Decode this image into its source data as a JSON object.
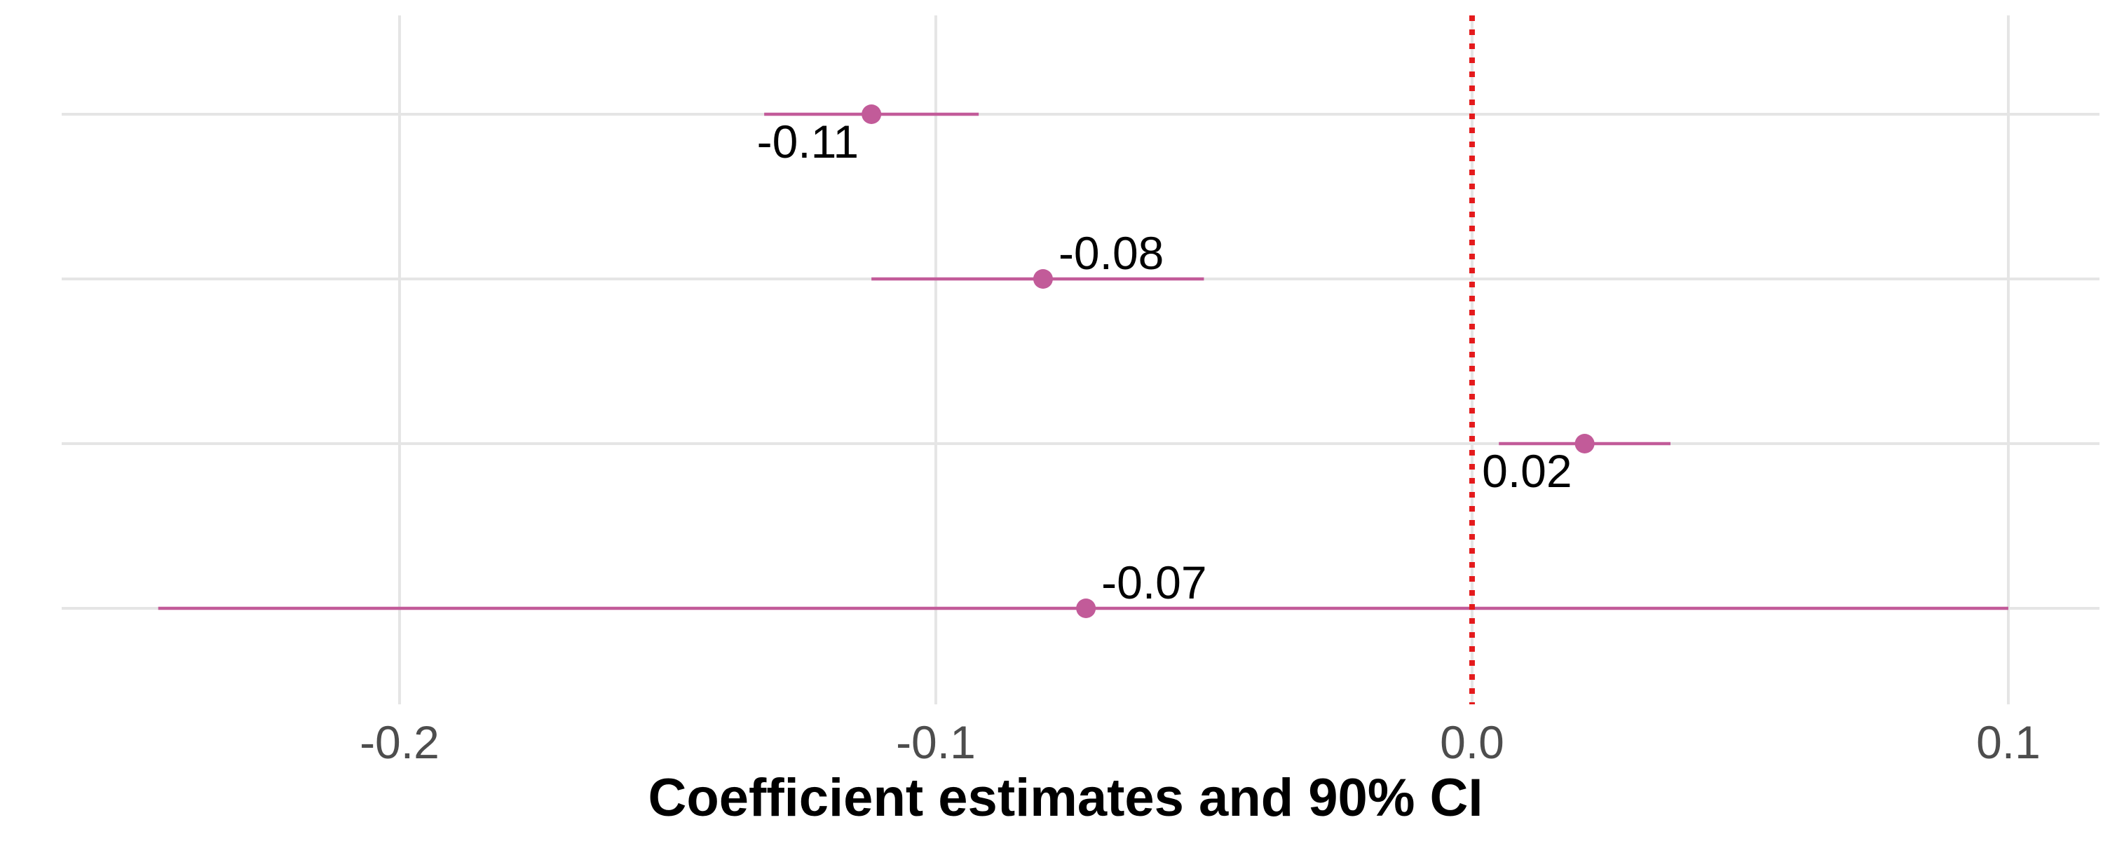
{
  "chart_data": {
    "type": "scatter",
    "subtype": "coefficient-plot",
    "title": "",
    "xlabel": "Coefficient estimates and 90% CI",
    "ylabel": "",
    "xlim": [
      -0.263,
      0.117
    ],
    "x_ticks": [
      -0.2,
      -0.1,
      0.0,
      0.1
    ],
    "x_tick_labels": [
      "-0.2",
      "-0.1",
      "0.0",
      "0.1"
    ],
    "grid": true,
    "legend": "none",
    "reference_line": {
      "x": 0.0,
      "style": "dotted",
      "color": "#e41a1c"
    },
    "point_color": "#c25b99",
    "interval_color": "#c25b99",
    "rows": [
      {
        "estimate": -0.112,
        "ci_low": -0.132,
        "ci_high": -0.092,
        "label": "-0.11",
        "label_side": "below-left"
      },
      {
        "estimate": -0.08,
        "ci_low": -0.112,
        "ci_high": -0.05,
        "label": "-0.08",
        "label_side": "above-right"
      },
      {
        "estimate": 0.021,
        "ci_low": 0.005,
        "ci_high": 0.037,
        "label": "0.02",
        "label_side": "below-left"
      },
      {
        "estimate": -0.072,
        "ci_low": -0.245,
        "ci_high": 0.1,
        "label": "-0.07",
        "label_side": "above-right"
      }
    ]
  }
}
